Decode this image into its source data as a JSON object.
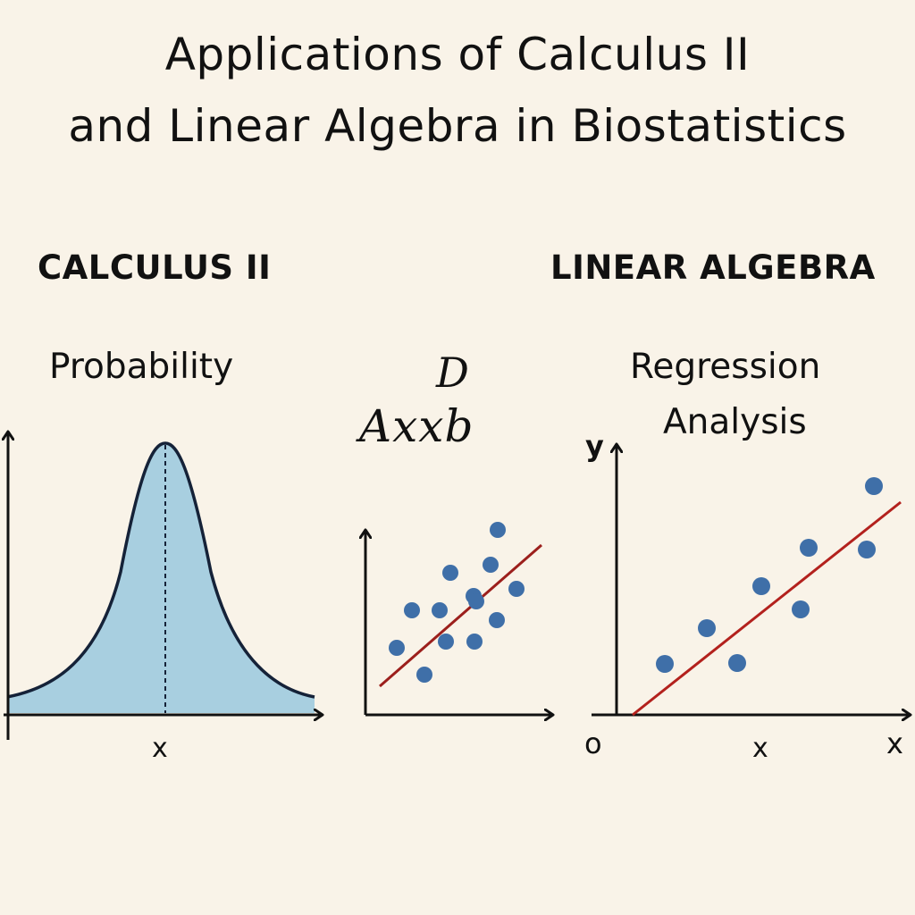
{
  "header": {
    "title_line1": "Applications of Calculus II",
    "title_line2": "and Linear Algebra in Biostatistics"
  },
  "calculus": {
    "section_title": "CALCULUS II",
    "topic": "Probability",
    "x_label": "x"
  },
  "middle": {
    "symbol_d": "D",
    "equation": "Axxb"
  },
  "linear_algebra": {
    "section_title": "LINEAR ALGEBRA",
    "topic_line1": "Regression",
    "topic_line2": "Analysis",
    "y_label": "y",
    "origin_label": "o",
    "x_label_mid": "x",
    "x_label_end": "x"
  },
  "colors": {
    "background": "#f9f3e8",
    "curve_fill": "#a8cfe0",
    "curve_stroke": "#152238",
    "point": "#3f6fa8",
    "regression_line": "#b3211d",
    "axis": "#111111"
  }
}
